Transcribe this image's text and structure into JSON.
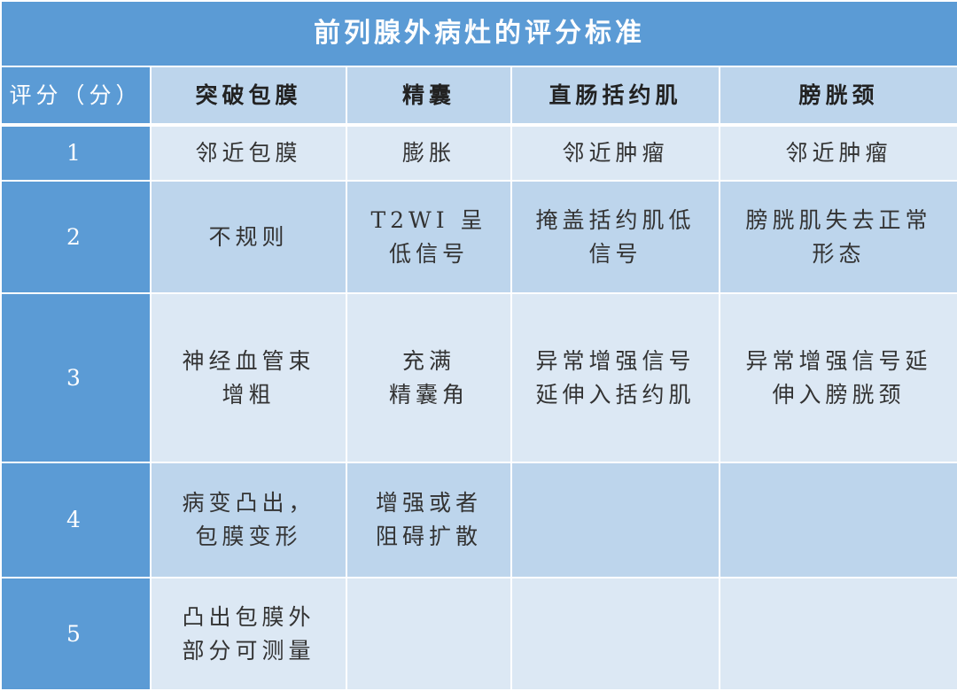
{
  "title": "前列腺外病灶的评分标准",
  "colors": {
    "header_blue": "#5b9bd5",
    "row_dark": "#bdd5ec",
    "row_light": "#dce8f4"
  },
  "headers": [
    "评分（分）",
    "突破包膜",
    "精囊",
    "直肠括约肌",
    "膀胱颈"
  ],
  "rows": [
    {
      "score": "1",
      "cells": [
        "邻近包膜",
        "膨胀",
        "邻近肿瘤",
        "邻近肿瘤"
      ]
    },
    {
      "score": "2",
      "cells": [
        "不规则",
        "T2WI 呈\n低信号",
        "掩盖括约肌低\n信号",
        "膀胱肌失去正常\n形态"
      ]
    },
    {
      "score": "3",
      "cells": [
        "神经血管束\n增粗",
        "充满\n精囊角",
        "异常增强信号\n延伸入括约肌",
        "异常增强信号延\n伸入膀胱颈"
      ]
    },
    {
      "score": "4",
      "cells": [
        "病变凸出，\n包膜变形",
        "增强或者\n阻碍扩散",
        "",
        ""
      ]
    },
    {
      "score": "5",
      "cells": [
        "凸出包膜外\n部分可测量",
        "",
        "",
        ""
      ]
    }
  ]
}
